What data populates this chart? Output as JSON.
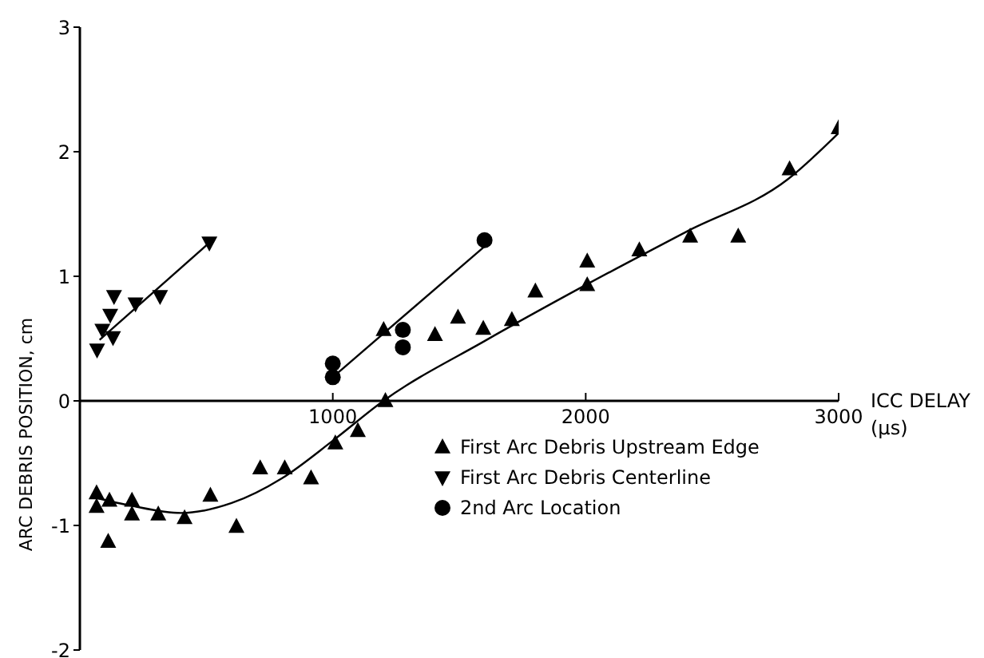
{
  "chart_data": {
    "type": "scatter",
    "xlabel": "ICC DELAY (μs)",
    "ylabel": "ARC DEBRIS POSITION, cm",
    "xlim": [
      0,
      3000
    ],
    "xticks": [
      1000,
      2000,
      3000
    ],
    "ylim": [
      -2,
      3
    ],
    "yticks": [
      -2,
      -1,
      0,
      1,
      2,
      3
    ],
    "legend": "right",
    "series": [
      {
        "name": "First Arc Debris Upstream Edge",
        "color": "#000000",
        "marker": "triangle",
        "x": [
          66,
          66,
          117,
          112,
          206,
          206,
          310,
          414,
          516,
          619,
          713,
          810,
          914,
          1010,
          1099,
          1208,
          1201,
          1404,
          1495,
          1595,
          1708,
          1801,
          2006,
          2006,
          2212,
          2413,
          2603,
          2806,
          3000
        ],
        "values": [
          -0.74,
          -0.85,
          -0.8,
          -1.13,
          -0.8,
          -0.91,
          -0.91,
          -0.94,
          -0.76,
          -1.01,
          -0.54,
          -0.54,
          -0.62,
          -0.34,
          -0.24,
          0,
          0.57,
          0.53,
          0.67,
          0.58,
          0.65,
          0.88,
          1.12,
          0.93,
          1.21,
          1.32,
          1.32,
          1.86,
          2.19
        ]
      },
      {
        "name": "First Arc Debris Centerline",
        "color": "#000000",
        "marker": "triangle-down",
        "x": [
          68,
          89,
          120,
          135,
          131,
          220,
          317,
          512
        ],
        "values": [
          0.41,
          0.57,
          0.69,
          0.84,
          0.51,
          0.78,
          0.84,
          1.27
        ]
      },
      {
        "name": "2nd Arc Location",
        "color": "#000000",
        "marker": "circle",
        "x": [
          1000,
          1000,
          1277,
          1277,
          1600
        ],
        "values": [
          0.3,
          0.19,
          0.57,
          0.43,
          1.29
        ]
      },
      {
        "type": "line",
        "color": "#000000",
        "marker": "none",
        "x": [
          66,
          200,
          400,
          600,
          800,
          1000,
          1200,
          1600,
          2000,
          2400,
          2800,
          3000
        ],
        "values": [
          -0.78,
          -0.84,
          -0.9,
          -0.82,
          -0.62,
          -0.32,
          0,
          0.48,
          0.93,
          1.36,
          1.78,
          2.15
        ]
      },
      {
        "type": "line",
        "color": "#000000",
        "marker": "none",
        "x": [
          78,
          512
        ],
        "values": [
          0.49,
          1.27
        ]
      },
      {
        "type": "line",
        "color": "#000000",
        "marker": "none",
        "x": [
          1000,
          1600
        ],
        "values": [
          0.19,
          1.24
        ]
      }
    ]
  }
}
